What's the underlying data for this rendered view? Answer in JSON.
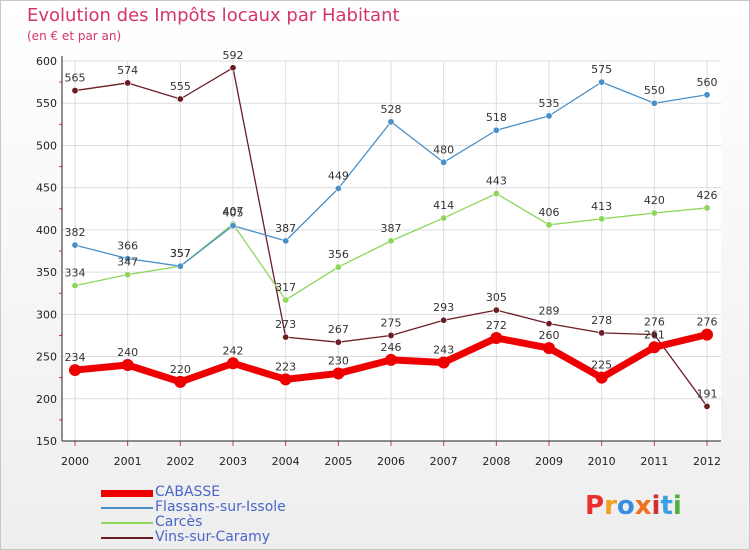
{
  "header": {
    "title": "Evolution des Impôts locaux par Habitant",
    "subtitle": "(en € et par an)"
  },
  "logo": {
    "text": "Proxiti"
  },
  "chart_data": {
    "type": "line",
    "x": [
      "2000",
      "2001",
      "2002",
      "2003",
      "2004",
      "2005",
      "2006",
      "2007",
      "2008",
      "2009",
      "2010",
      "2011",
      "2012"
    ],
    "ylim": [
      150,
      600
    ],
    "yticks": [
      150,
      200,
      250,
      300,
      350,
      400,
      450,
      500,
      550,
      600
    ],
    "grid": true,
    "legend_position": "bottom-left",
    "series": [
      {
        "name": "CABASSE",
        "color": "#ee0000",
        "values": [
          234,
          240,
          220,
          242,
          223,
          230,
          246,
          243,
          272,
          260,
          225,
          261,
          276
        ]
      },
      {
        "name": "Flassans-sur-Issole",
        "color": "#4a90c8",
        "values": [
          382,
          366,
          357,
          405,
          387,
          449,
          528,
          480,
          518,
          535,
          575,
          550,
          560
        ]
      },
      {
        "name": "Carcès",
        "color": "#8cd65a",
        "values": [
          334,
          347,
          357,
          407,
          317,
          356,
          387,
          414,
          443,
          406,
          413,
          420,
          426
        ]
      },
      {
        "name": "Vins-sur-Caramy",
        "color": "#6b1c24",
        "values": [
          565,
          574,
          555,
          592,
          273,
          267,
          275,
          293,
          305,
          289,
          278,
          276,
          191
        ]
      }
    ]
  }
}
